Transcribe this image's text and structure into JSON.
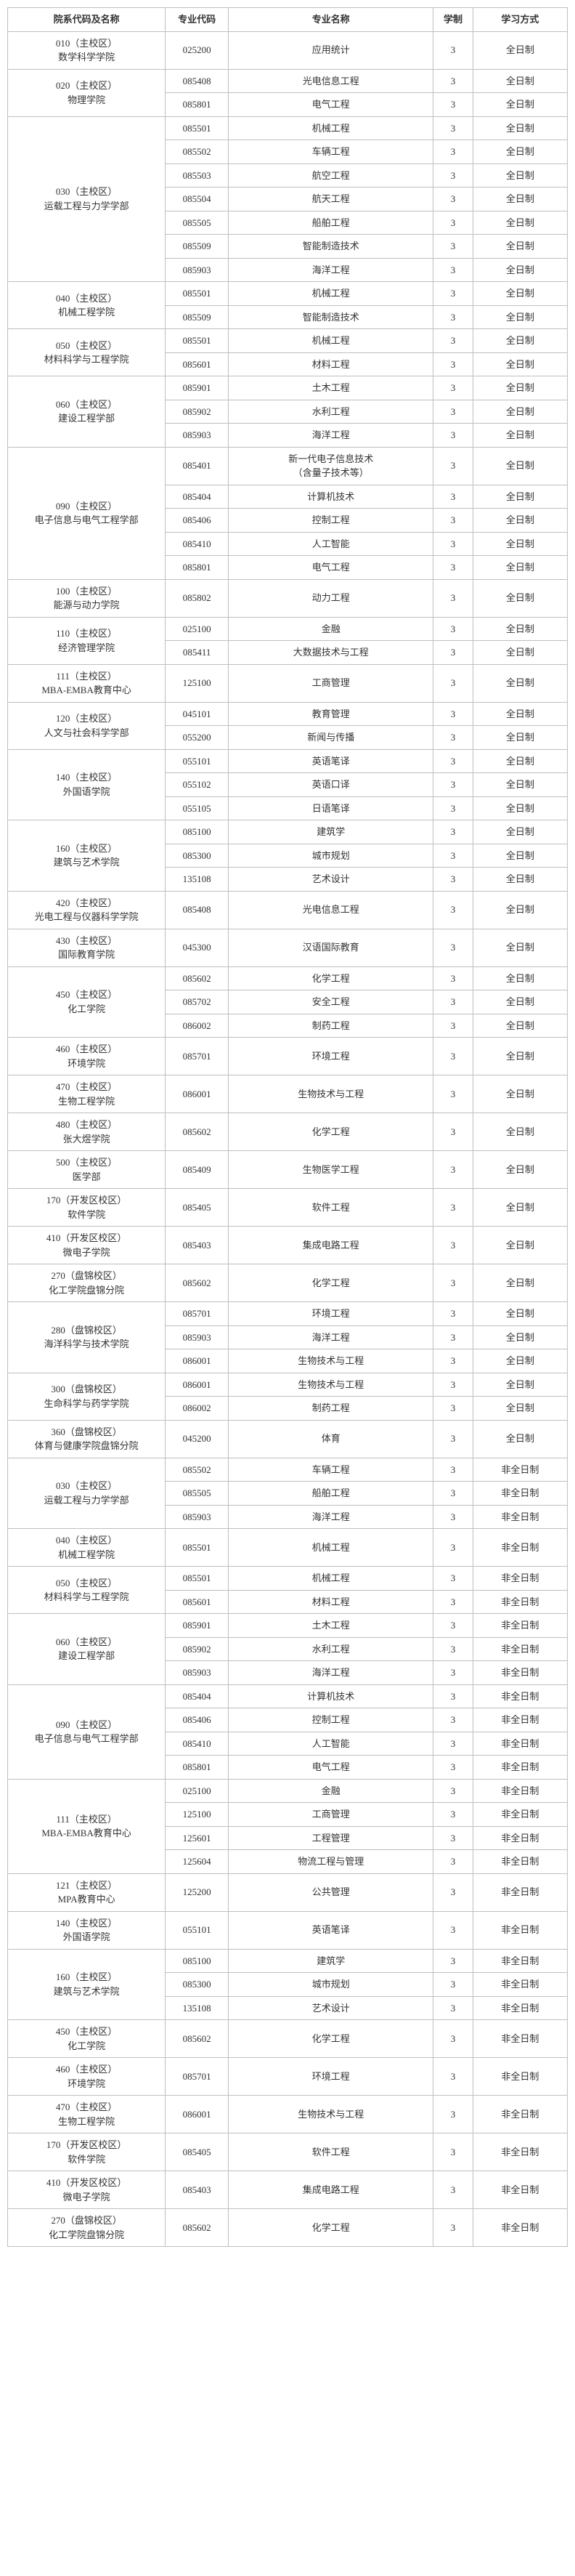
{
  "header": {
    "dept": "院系代码及名称",
    "major_code": "专业代码",
    "major_name": "专业名称",
    "duration": "学制",
    "mode": "学习方式"
  },
  "depts": [
    {
      "name": "010（主校区）\n数学科学学院",
      "rows": [
        {
          "code": "025200",
          "name": "应用统计",
          "dur": "3",
          "mode": "全日制"
        }
      ]
    },
    {
      "name": "020（主校区）\n物理学院",
      "rows": [
        {
          "code": "085408",
          "name": "光电信息工程",
          "dur": "3",
          "mode": "全日制"
        },
        {
          "code": "085801",
          "name": "电气工程",
          "dur": "3",
          "mode": "全日制"
        }
      ]
    },
    {
      "name": "030（主校区）\n运载工程与力学学部",
      "rows": [
        {
          "code": "085501",
          "name": "机械工程",
          "dur": "3",
          "mode": "全日制"
        },
        {
          "code": "085502",
          "name": "车辆工程",
          "dur": "3",
          "mode": "全日制"
        },
        {
          "code": "085503",
          "name": "航空工程",
          "dur": "3",
          "mode": "全日制"
        },
        {
          "code": "085504",
          "name": "航天工程",
          "dur": "3",
          "mode": "全日制"
        },
        {
          "code": "085505",
          "name": "船舶工程",
          "dur": "3",
          "mode": "全日制"
        },
        {
          "code": "085509",
          "name": "智能制造技术",
          "dur": "3",
          "mode": "全日制"
        },
        {
          "code": "085903",
          "name": "海洋工程",
          "dur": "3",
          "mode": "全日制"
        }
      ]
    },
    {
      "name": "040（主校区）\n机械工程学院",
      "rows": [
        {
          "code": "085501",
          "name": "机械工程",
          "dur": "3",
          "mode": "全日制"
        },
        {
          "code": "085509",
          "name": "智能制造技术",
          "dur": "3",
          "mode": "全日制"
        }
      ]
    },
    {
      "name": "050（主校区）\n材料科学与工程学院",
      "rows": [
        {
          "code": "085501",
          "name": "机械工程",
          "dur": "3",
          "mode": "全日制"
        },
        {
          "code": "085601",
          "name": "材料工程",
          "dur": "3",
          "mode": "全日制"
        }
      ]
    },
    {
      "name": "060（主校区）\n建设工程学部",
      "rows": [
        {
          "code": "085901",
          "name": "土木工程",
          "dur": "3",
          "mode": "全日制"
        },
        {
          "code": "085902",
          "name": "水利工程",
          "dur": "3",
          "mode": "全日制"
        },
        {
          "code": "085903",
          "name": "海洋工程",
          "dur": "3",
          "mode": "全日制"
        }
      ]
    },
    {
      "name": "090（主校区）\n电子信息与电气工程学部",
      "rows": [
        {
          "code": "085401",
          "name": "新一代电子信息技术\n（含量子技术等）",
          "dur": "3",
          "mode": "全日制"
        },
        {
          "code": "085404",
          "name": "计算机技术",
          "dur": "3",
          "mode": "全日制"
        },
        {
          "code": "085406",
          "name": "控制工程",
          "dur": "3",
          "mode": "全日制"
        },
        {
          "code": "085410",
          "name": "人工智能",
          "dur": "3",
          "mode": "全日制"
        },
        {
          "code": "085801",
          "name": "电气工程",
          "dur": "3",
          "mode": "全日制"
        }
      ]
    },
    {
      "name": "100（主校区）\n能源与动力学院",
      "rows": [
        {
          "code": "085802",
          "name": "动力工程",
          "dur": "3",
          "mode": "全日制"
        }
      ]
    },
    {
      "name": "110（主校区）\n经济管理学院",
      "rows": [
        {
          "code": "025100",
          "name": "金融",
          "dur": "3",
          "mode": "全日制"
        },
        {
          "code": "085411",
          "name": "大数据技术与工程",
          "dur": "3",
          "mode": "全日制"
        }
      ]
    },
    {
      "name": "111（主校区）\nMBA-EMBA教育中心",
      "rows": [
        {
          "code": "125100",
          "name": "工商管理",
          "dur": "3",
          "mode": "全日制"
        }
      ]
    },
    {
      "name": "120（主校区）\n人文与社会科学学部",
      "rows": [
        {
          "code": "045101",
          "name": "教育管理",
          "dur": "3",
          "mode": "全日制"
        },
        {
          "code": "055200",
          "name": "新闻与传播",
          "dur": "3",
          "mode": "全日制"
        }
      ]
    },
    {
      "name": "140（主校区）\n外国语学院",
      "rows": [
        {
          "code": "055101",
          "name": "英语笔译",
          "dur": "3",
          "mode": "全日制"
        },
        {
          "code": "055102",
          "name": "英语口译",
          "dur": "3",
          "mode": "全日制"
        },
        {
          "code": "055105",
          "name": "日语笔译",
          "dur": "3",
          "mode": "全日制"
        }
      ]
    },
    {
      "name": "160（主校区）\n建筑与艺术学院",
      "rows": [
        {
          "code": "085100",
          "name": "建筑学",
          "dur": "3",
          "mode": "全日制"
        },
        {
          "code": "085300",
          "name": "城市规划",
          "dur": "3",
          "mode": "全日制"
        },
        {
          "code": "135108",
          "name": "艺术设计",
          "dur": "3",
          "mode": "全日制"
        }
      ]
    },
    {
      "name": "420（主校区）\n光电工程与仪器科学学院",
      "rows": [
        {
          "code": "085408",
          "name": "光电信息工程",
          "dur": "3",
          "mode": "全日制"
        }
      ]
    },
    {
      "name": "430（主校区）\n国际教育学院",
      "rows": [
        {
          "code": "045300",
          "name": "汉语国际教育",
          "dur": "3",
          "mode": "全日制"
        }
      ]
    },
    {
      "name": "450（主校区）\n化工学院",
      "rows": [
        {
          "code": "085602",
          "name": "化学工程",
          "dur": "3",
          "mode": "全日制"
        },
        {
          "code": "085702",
          "name": "安全工程",
          "dur": "3",
          "mode": "全日制"
        },
        {
          "code": "086002",
          "name": "制药工程",
          "dur": "3",
          "mode": "全日制"
        }
      ]
    },
    {
      "name": "460（主校区）\n环境学院",
      "rows": [
        {
          "code": "085701",
          "name": "环境工程",
          "dur": "3",
          "mode": "全日制"
        }
      ]
    },
    {
      "name": "470（主校区）\n生物工程学院",
      "rows": [
        {
          "code": "086001",
          "name": "生物技术与工程",
          "dur": "3",
          "mode": "全日制"
        }
      ]
    },
    {
      "name": "480（主校区）\n张大煜学院",
      "rows": [
        {
          "code": "085602",
          "name": "化学工程",
          "dur": "3",
          "mode": "全日制"
        }
      ]
    },
    {
      "name": "500（主校区）\n医学部",
      "rows": [
        {
          "code": "085409",
          "name": "生物医学工程",
          "dur": "3",
          "mode": "全日制"
        }
      ]
    },
    {
      "name": "170（开发区校区）\n软件学院",
      "rows": [
        {
          "code": "085405",
          "name": "软件工程",
          "dur": "3",
          "mode": "全日制"
        }
      ]
    },
    {
      "name": "410（开发区校区）\n微电子学院",
      "rows": [
        {
          "code": "085403",
          "name": "集成电路工程",
          "dur": "3",
          "mode": "全日制"
        }
      ]
    },
    {
      "name": "270（盘锦校区）\n化工学院盘锦分院",
      "rows": [
        {
          "code": "085602",
          "name": "化学工程",
          "dur": "3",
          "mode": "全日制"
        }
      ]
    },
    {
      "name": "280（盘锦校区）\n海洋科学与技术学院",
      "rows": [
        {
          "code": "085701",
          "name": "环境工程",
          "dur": "3",
          "mode": "全日制"
        },
        {
          "code": "085903",
          "name": "海洋工程",
          "dur": "3",
          "mode": "全日制"
        },
        {
          "code": "086001",
          "name": "生物技术与工程",
          "dur": "3",
          "mode": "全日制"
        }
      ]
    },
    {
      "name": "300（盘锦校区）\n生命科学与药学学院",
      "rows": [
        {
          "code": "086001",
          "name": "生物技术与工程",
          "dur": "3",
          "mode": "全日制"
        },
        {
          "code": "086002",
          "name": "制药工程",
          "dur": "3",
          "mode": "全日制"
        }
      ]
    },
    {
      "name": "360（盘锦校区）\n体育与健康学院盘锦分院",
      "rows": [
        {
          "code": "045200",
          "name": "体育",
          "dur": "3",
          "mode": "全日制"
        }
      ]
    },
    {
      "name": "030（主校区）\n运载工程与力学学部",
      "rows": [
        {
          "code": "085502",
          "name": "车辆工程",
          "dur": "3",
          "mode": "非全日制"
        },
        {
          "code": "085505",
          "name": "船舶工程",
          "dur": "3",
          "mode": "非全日制"
        },
        {
          "code": "085903",
          "name": "海洋工程",
          "dur": "3",
          "mode": "非全日制"
        }
      ]
    },
    {
      "name": "040（主校区）\n机械工程学院",
      "rows": [
        {
          "code": "085501",
          "name": "机械工程",
          "dur": "3",
          "mode": "非全日制"
        }
      ]
    },
    {
      "name": "050（主校区）\n材料科学与工程学院",
      "rows": [
        {
          "code": "085501",
          "name": "机械工程",
          "dur": "3",
          "mode": "非全日制"
        },
        {
          "code": "085601",
          "name": "材料工程",
          "dur": "3",
          "mode": "非全日制"
        }
      ]
    },
    {
      "name": "060（主校区）\n建设工程学部",
      "rows": [
        {
          "code": "085901",
          "name": "土木工程",
          "dur": "3",
          "mode": "非全日制"
        },
        {
          "code": "085902",
          "name": "水利工程",
          "dur": "3",
          "mode": "非全日制"
        },
        {
          "code": "085903",
          "name": "海洋工程",
          "dur": "3",
          "mode": "非全日制"
        }
      ]
    },
    {
      "name": "090（主校区）\n电子信息与电气工程学部",
      "rows": [
        {
          "code": "085404",
          "name": "计算机技术",
          "dur": "3",
          "mode": "非全日制"
        },
        {
          "code": "085406",
          "name": "控制工程",
          "dur": "3",
          "mode": "非全日制"
        },
        {
          "code": "085410",
          "name": "人工智能",
          "dur": "3",
          "mode": "非全日制"
        },
        {
          "code": "085801",
          "name": "电气工程",
          "dur": "3",
          "mode": "非全日制"
        }
      ]
    },
    {
      "name": "111（主校区）\nMBA-EMBA教育中心",
      "rows": [
        {
          "code": "025100",
          "name": "金融",
          "dur": "3",
          "mode": "非全日制"
        },
        {
          "code": "125100",
          "name": "工商管理",
          "dur": "3",
          "mode": "非全日制"
        },
        {
          "code": "125601",
          "name": "工程管理",
          "dur": "3",
          "mode": "非全日制"
        },
        {
          "code": "125604",
          "name": "物流工程与管理",
          "dur": "3",
          "mode": "非全日制"
        }
      ]
    },
    {
      "name": "121（主校区）\nMPA教育中心",
      "rows": [
        {
          "code": "125200",
          "name": "公共管理",
          "dur": "3",
          "mode": "非全日制"
        }
      ]
    },
    {
      "name": "140（主校区）\n外国语学院",
      "rows": [
        {
          "code": "055101",
          "name": "英语笔译",
          "dur": "3",
          "mode": "非全日制"
        }
      ]
    },
    {
      "name": "160（主校区）\n建筑与艺术学院",
      "rows": [
        {
          "code": "085100",
          "name": "建筑学",
          "dur": "3",
          "mode": "非全日制"
        },
        {
          "code": "085300",
          "name": "城市规划",
          "dur": "3",
          "mode": "非全日制"
        },
        {
          "code": "135108",
          "name": "艺术设计",
          "dur": "3",
          "mode": "非全日制"
        }
      ]
    },
    {
      "name": "450（主校区）\n化工学院",
      "rows": [
        {
          "code": "085602",
          "name": "化学工程",
          "dur": "3",
          "mode": "非全日制"
        }
      ]
    },
    {
      "name": "460（主校区）\n环境学院",
      "rows": [
        {
          "code": "085701",
          "name": "环境工程",
          "dur": "3",
          "mode": "非全日制"
        }
      ]
    },
    {
      "name": "470（主校区）\n生物工程学院",
      "rows": [
        {
          "code": "086001",
          "name": "生物技术与工程",
          "dur": "3",
          "mode": "非全日制"
        }
      ]
    },
    {
      "name": "170（开发区校区）\n软件学院",
      "rows": [
        {
          "code": "085405",
          "name": "软件工程",
          "dur": "3",
          "mode": "非全日制"
        }
      ]
    },
    {
      "name": "410（开发区校区）\n微电子学院",
      "rows": [
        {
          "code": "085403",
          "name": "集成电路工程",
          "dur": "3",
          "mode": "非全日制"
        }
      ]
    },
    {
      "name": "270（盘锦校区）\n化工学院盘锦分院",
      "rows": [
        {
          "code": "085602",
          "name": "化学工程",
          "dur": "3",
          "mode": "非全日制"
        }
      ]
    }
  ]
}
